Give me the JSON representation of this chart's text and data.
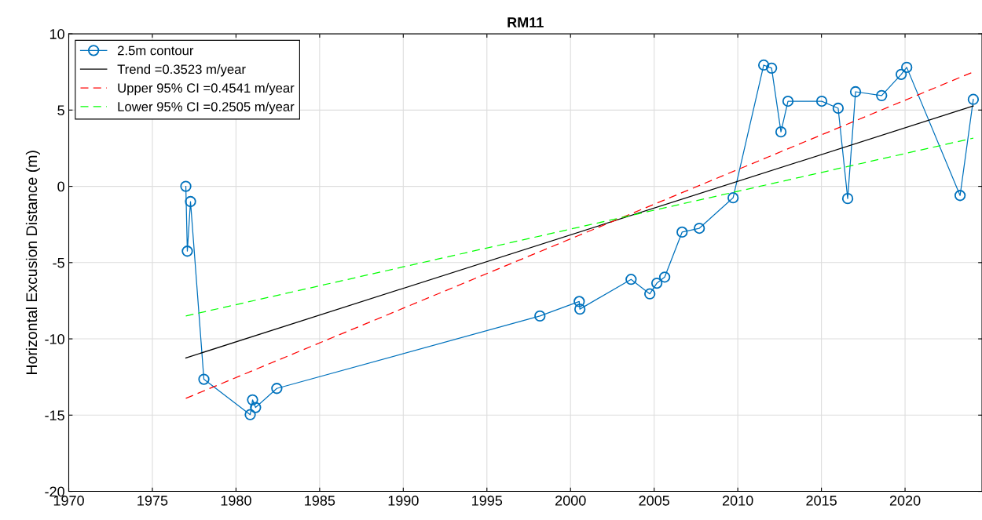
{
  "chart_data": {
    "type": "line",
    "title": "RM11",
    "ylabel": "Horizontal Excusion Distance (m)",
    "xlim": [
      1970,
      2024.6
    ],
    "ylim": [
      -20,
      10
    ],
    "xticks": [
      1970,
      1975,
      1980,
      1985,
      1990,
      1995,
      2000,
      2005,
      2010,
      2015,
      2020
    ],
    "yticks": [
      -20,
      -15,
      -10,
      -5,
      0,
      5,
      10
    ],
    "grid": true,
    "legend": "top left",
    "series": [
      {
        "name": "2.5m contour",
        "color": "#0072bd",
        "marker": "circle",
        "line_style": "solid",
        "x": [
          1977.0,
          1977.09,
          1977.28,
          1978.08,
          1980.85,
          1980.99,
          1981.17,
          1982.44,
          1998.17,
          2000.52,
          2000.56,
          2003.62,
          2004.74,
          2005.16,
          2005.63,
          2006.67,
          2007.7,
          2009.72,
          2011.55,
          2012.02,
          2012.58,
          2013.0,
          2015.02,
          2016.0,
          2016.57,
          2017.04,
          2018.6,
          2019.77,
          2020.1,
          2023.29,
          2024.08
        ],
        "values": [
          0.0,
          -4.25,
          -1.0,
          -12.65,
          -14.97,
          -14.0,
          -14.5,
          -13.25,
          -8.5,
          -7.55,
          -8.05,
          -6.1,
          -7.05,
          -6.35,
          -5.95,
          -3.0,
          -2.75,
          -0.75,
          7.95,
          7.75,
          3.57,
          5.58,
          5.58,
          5.12,
          -0.8,
          6.2,
          5.95,
          7.34,
          7.8,
          -0.6,
          5.7
        ]
      },
      {
        "name": "Trend =0.3523 m/year",
        "color": "#000000",
        "marker": "none",
        "line_style": "solid",
        "x": [
          1977.0,
          2024.08
        ],
        "values": [
          -11.25,
          5.27
        ]
      },
      {
        "name": "Upper 95% CI =0.4541 m/year",
        "color": "#ff0000",
        "marker": "none",
        "line_style": "dashed",
        "x": [
          1977.0,
          2024.08
        ],
        "values": [
          -13.9,
          7.5
        ]
      },
      {
        "name": "Lower 95% CI =0.2505 m/year",
        "color": "#00ff00",
        "marker": "none",
        "line_style": "dashed",
        "x": [
          1977.0,
          2024.08
        ],
        "values": [
          -8.5,
          3.16
        ]
      }
    ]
  }
}
